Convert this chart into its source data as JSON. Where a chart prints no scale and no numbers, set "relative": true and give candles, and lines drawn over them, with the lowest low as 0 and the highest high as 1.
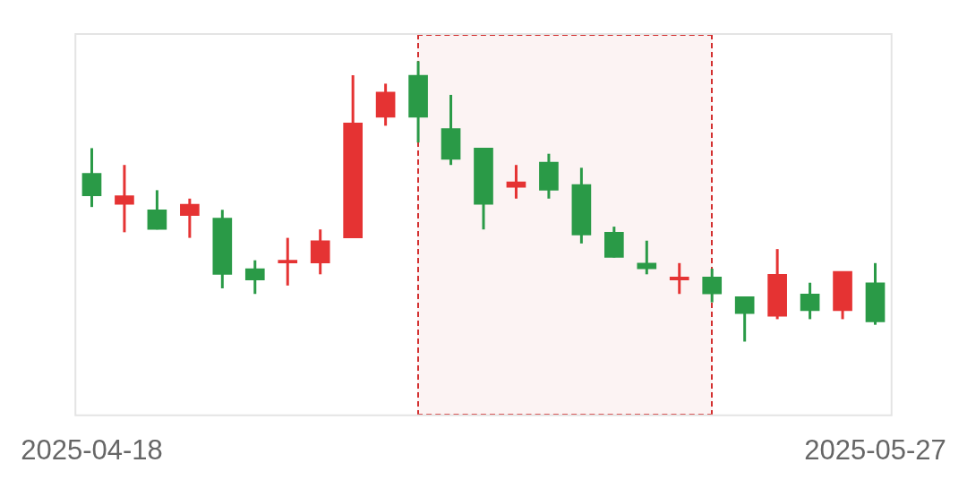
{
  "chart_data": {
    "type": "candlestick",
    "relative": true,
    "categories": [
      "2025-04-18",
      null,
      null,
      null,
      null,
      null,
      null,
      null,
      null,
      null,
      null,
      null,
      null,
      null,
      null,
      null,
      null,
      null,
      null,
      null,
      null,
      null,
      null,
      null,
      "2025-05-27"
    ],
    "ohlc": [
      [
        0.6,
        0.69,
        0.48,
        0.52
      ],
      [
        0.49,
        0.63,
        0.39,
        0.52
      ],
      [
        0.47,
        0.54,
        0.4,
        0.4
      ],
      [
        0.45,
        0.51,
        0.37,
        0.49
      ],
      [
        0.44,
        0.47,
        0.19,
        0.24
      ],
      [
        0.26,
        0.29,
        0.17,
        0.22
      ],
      [
        0.28,
        0.37,
        0.2,
        0.29
      ],
      [
        0.28,
        0.4,
        0.24,
        0.36
      ],
      [
        0.37,
        0.95,
        0.37,
        0.78
      ],
      [
        0.8,
        0.92,
        0.77,
        0.89
      ],
      [
        0.95,
        1,
        0.71,
        0.8
      ],
      [
        0.76,
        0.88,
        0.63,
        0.65
      ],
      [
        0.69,
        0.69,
        0.4,
        0.49
      ],
      [
        0.55,
        0.63,
        0.51,
        0.57
      ],
      [
        0.64,
        0.67,
        0.51,
        0.54
      ],
      [
        0.56,
        0.62,
        0.35,
        0.38
      ],
      [
        0.39,
        0.41,
        0.3,
        0.3
      ],
      [
        0.28,
        0.36,
        0.24,
        0.26
      ],
      [
        0.22,
        0.28,
        0.17,
        0.23
      ],
      [
        0.23,
        0.26,
        0.14,
        0.17
      ],
      [
        0.16,
        0.16,
        0,
        0.1
      ],
      [
        0.09,
        0.33,
        0.08,
        0.24
      ],
      [
        0.17,
        0.21,
        0.08,
        0.11
      ],
      [
        0.11,
        0.25,
        0.08,
        0.25
      ],
      [
        0.21,
        0.28,
        0.06,
        0.07
      ]
    ],
    "colors": [
      "#2a9a47",
      "#e53333",
      "#2a9a47",
      "#e53333",
      "#2a9a47",
      "#2a9a47",
      "#e53333",
      "#e53333",
      "#e53333",
      "#e53333",
      "#2a9a47",
      "#2a9a47",
      "#2a9a47",
      "#e53333",
      "#2a9a47",
      "#2a9a47",
      "#2a9a47",
      "#2a9a47",
      "#e53333",
      "#2a9a47",
      "#2a9a47",
      "#e53333",
      "#2a9a47",
      "#e53333",
      "#2a9a47"
    ]
  }
}
